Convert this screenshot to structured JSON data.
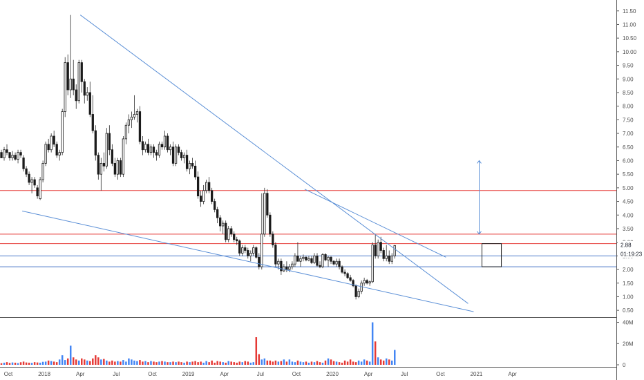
{
  "chart_data": {
    "type": "candlestick",
    "price_axis": {
      "ticks": [
        "11.50",
        "11.00",
        "10.50",
        "10.00",
        "9.50",
        "9.00",
        "8.50",
        "8.00",
        "7.50",
        "7.00",
        "6.50",
        "6.00",
        "5.50",
        "5.00",
        "4.50",
        "4.00",
        "3.50",
        "3.00",
        "2.50",
        "2.00",
        "1.50",
        "1.00",
        "0.50"
      ],
      "range": [
        0.25,
        11.9
      ]
    },
    "volume_axis": {
      "ticks": [
        "40M",
        "20M",
        "0"
      ],
      "range": [
        0,
        41
      ]
    },
    "time_axis": {
      "ticks": [
        "Oct",
        "2018",
        "Apr",
        "Jul",
        "Oct",
        "2019",
        "Apr",
        "Jul",
        "Oct",
        "2020",
        "Apr",
        "Jul",
        "Oct",
        "2021",
        "Apr"
      ],
      "range_weeks": [
        0,
        232
      ]
    },
    "last_price_label": "2.88",
    "countdown_label": "01:19:23",
    "horizontal_levels": [
      {
        "price": 4.9,
        "color": "#e53935"
      },
      {
        "price": 3.3,
        "color": "#e53935"
      },
      {
        "price": 2.95,
        "color": "#e53935"
      },
      {
        "price": 2.5,
        "color": "#4a78c8"
      },
      {
        "price": 2.1,
        "color": "#4a78c8"
      }
    ],
    "trendlines": [
      {
        "from": [
          29,
          11.35
        ],
        "to": [
          169,
          0.75
        ]
      },
      {
        "from": [
          8,
          4.15
        ],
        "to": [
          171,
          0.45
        ]
      },
      {
        "from": [
          110,
          4.95
        ],
        "to": [
          161,
          2.45
        ]
      }
    ],
    "arrow": {
      "week": 173,
      "from": 3.3,
      "to": 6.0
    },
    "box": {
      "week_from": 174,
      "week_to": 181,
      "price_from": 2.1,
      "price_to": 2.95
    },
    "candles": [
      [
        6.3,
        6.4,
        6.1,
        6.1
      ],
      [
        6.1,
        6.5,
        6.0,
        6.4
      ],
      [
        6.4,
        6.6,
        6.2,
        6.3
      ],
      [
        6.3,
        6.3,
        6.0,
        6.1
      ],
      [
        6.1,
        6.35,
        6.0,
        6.2
      ],
      [
        6.2,
        6.3,
        6.0,
        6.05
      ],
      [
        6.05,
        6.4,
        5.9,
        6.3
      ],
      [
        6.3,
        6.4,
        6.1,
        6.2
      ],
      [
        6.1,
        6.2,
        5.6,
        5.7
      ],
      [
        5.7,
        5.8,
        5.4,
        5.5
      ],
      [
        5.5,
        5.6,
        5.1,
        5.2
      ],
      [
        5.2,
        5.4,
        4.8,
        5.3
      ],
      [
        5.3,
        5.4,
        5.0,
        5.1
      ],
      [
        5.0,
        5.1,
        4.6,
        4.7
      ],
      [
        4.6,
        5.4,
        4.55,
        5.3
      ],
      [
        5.3,
        6.0,
        5.2,
        5.9
      ],
      [
        5.9,
        6.7,
        5.8,
        6.6
      ],
      [
        6.6,
        6.8,
        6.3,
        6.4
      ],
      [
        6.4,
        7.0,
        6.3,
        6.9
      ],
      [
        6.9,
        7.1,
        6.5,
        6.6
      ],
      [
        6.6,
        6.7,
        6.1,
        6.2
      ],
      [
        6.2,
        6.4,
        6.0,
        6.3
      ],
      [
        6.3,
        7.9,
        6.2,
        7.8
      ],
      [
        7.8,
        9.8,
        7.6,
        9.6
      ],
      [
        9.6,
        9.9,
        8.4,
        8.6
      ],
      [
        8.6,
        11.35,
        8.3,
        9.0
      ],
      [
        9.0,
        9.7,
        8.4,
        8.6
      ],
      [
        8.6,
        8.8,
        7.9,
        8.2
      ],
      [
        8.2,
        9.7,
        8.1,
        9.6
      ],
      [
        9.6,
        9.7,
        8.5,
        8.9
      ],
      [
        8.9,
        9.0,
        8.1,
        8.4
      ],
      [
        8.4,
        8.7,
        8.2,
        8.5
      ],
      [
        8.5,
        8.9,
        7.6,
        7.7
      ],
      [
        7.7,
        8.4,
        7.0,
        7.1
      ],
      [
        7.1,
        7.3,
        6.0,
        6.2
      ],
      [
        6.2,
        6.3,
        5.3,
        5.5
      ],
      [
        5.5,
        6.1,
        4.9,
        5.9
      ],
      [
        5.9,
        6.3,
        5.6,
        5.8
      ],
      [
        5.8,
        7.2,
        5.7,
        7.0
      ],
      [
        7.0,
        7.3,
        6.2,
        6.4
      ],
      [
        6.4,
        6.6,
        5.8,
        5.9
      ],
      [
        5.9,
        6.1,
        5.4,
        5.5
      ],
      [
        5.5,
        6.1,
        5.3,
        6.0
      ],
      [
        6.0,
        6.1,
        5.4,
        5.5
      ],
      [
        5.5,
        6.9,
        5.4,
        6.8
      ],
      [
        6.8,
        7.4,
        6.6,
        7.3
      ],
      [
        7.3,
        7.7,
        7.0,
        7.5
      ],
      [
        7.5,
        7.8,
        7.2,
        7.6
      ],
      [
        7.6,
        8.4,
        7.5,
        7.7
      ],
      [
        7.7,
        7.9,
        7.4,
        7.8
      ],
      [
        7.8,
        8.0,
        6.6,
        6.7
      ],
      [
        6.7,
        6.9,
        6.2,
        6.4
      ],
      [
        6.4,
        6.7,
        6.3,
        6.6
      ],
      [
        6.6,
        6.8,
        6.2,
        6.3
      ],
      [
        6.3,
        6.6,
        6.2,
        6.5
      ],
      [
        6.5,
        6.6,
        6.1,
        6.3
      ],
      [
        6.3,
        6.4,
        6.0,
        6.2
      ],
      [
        6.2,
        6.7,
        6.1,
        6.6
      ],
      [
        6.6,
        6.7,
        6.4,
        6.5
      ],
      [
        6.5,
        7.1,
        6.4,
        6.9
      ],
      [
        6.9,
        7.0,
        6.3,
        6.4
      ],
      [
        6.4,
        6.6,
        6.2,
        6.5
      ],
      [
        6.5,
        6.7,
        5.8,
        5.9
      ],
      [
        5.9,
        6.6,
        5.8,
        6.5
      ],
      [
        6.5,
        6.6,
        6.2,
        6.3
      ],
      [
        6.3,
        6.4,
        6.0,
        6.1
      ],
      [
        6.1,
        6.3,
        5.9,
        6.2
      ],
      [
        6.2,
        6.4,
        5.6,
        5.7
      ],
      [
        5.7,
        6.0,
        5.5,
        5.9
      ],
      [
        5.9,
        6.1,
        5.7,
        5.8
      ],
      [
        5.8,
        6.0,
        5.3,
        5.4
      ],
      [
        5.4,
        5.6,
        4.6,
        4.7
      ],
      [
        4.7,
        4.9,
        4.3,
        4.5
      ],
      [
        4.5,
        5.1,
        4.4,
        4.9
      ],
      [
        4.9,
        5.3,
        4.8,
        5.2
      ],
      [
        5.2,
        5.4,
        4.8,
        4.9
      ],
      [
        4.9,
        5.0,
        4.4,
        4.5
      ],
      [
        4.5,
        4.6,
        4.1,
        4.2
      ],
      [
        4.2,
        4.3,
        3.7,
        3.9
      ],
      [
        3.9,
        4.0,
        3.4,
        3.6
      ],
      [
        3.6,
        3.8,
        3.3,
        3.7
      ],
      [
        3.7,
        3.8,
        3.0,
        3.1
      ],
      [
        3.1,
        3.6,
        3.0,
        3.5
      ],
      [
        3.5,
        3.6,
        3.2,
        3.3
      ],
      [
        3.3,
        3.4,
        3.0,
        3.1
      ],
      [
        3.1,
        3.2,
        2.9,
        3.05
      ],
      [
        3.05,
        3.1,
        2.5,
        2.6
      ],
      [
        2.6,
        2.9,
        2.5,
        2.8
      ],
      [
        2.8,
        2.9,
        2.6,
        2.7
      ],
      [
        2.7,
        2.8,
        2.4,
        2.5
      ],
      [
        2.5,
        2.7,
        2.3,
        2.6
      ],
      [
        2.6,
        2.9,
        2.5,
        2.8
      ],
      [
        2.8,
        2.85,
        2.4,
        2.45
      ],
      [
        2.45,
        2.6,
        2.0,
        2.1
      ],
      [
        2.1,
        4.8,
        2.0,
        3.3
      ],
      [
        3.3,
        5.0,
        3.2,
        4.8
      ],
      [
        4.8,
        4.95,
        3.9,
        4.0
      ],
      [
        4.0,
        4.1,
        3.2,
        3.3
      ],
      [
        3.3,
        3.4,
        2.8,
        2.9
      ],
      [
        2.9,
        3.0,
        2.1,
        2.2
      ],
      [
        2.2,
        2.4,
        2.0,
        2.3
      ],
      [
        2.3,
        2.4,
        1.8,
        1.95
      ],
      [
        1.95,
        2.2,
        1.9,
        2.1
      ],
      [
        2.1,
        2.3,
        1.9,
        2.0
      ],
      [
        2.0,
        2.2,
        1.9,
        2.1
      ],
      [
        2.1,
        2.3,
        2.0,
        2.2
      ],
      [
        2.2,
        2.6,
        2.1,
        2.5
      ],
      [
        2.5,
        3.0,
        2.3,
        2.3
      ],
      [
        2.3,
        2.5,
        2.1,
        2.4
      ],
      [
        2.4,
        2.55,
        2.3,
        2.45
      ],
      [
        2.45,
        2.5,
        2.3,
        2.35
      ],
      [
        2.35,
        2.5,
        2.3,
        2.4
      ],
      [
        2.4,
        2.5,
        2.2,
        2.25
      ],
      [
        2.25,
        2.6,
        2.2,
        2.5
      ],
      [
        2.5,
        2.6,
        2.1,
        2.15
      ],
      [
        2.15,
        2.3,
        2.05,
        2.1
      ],
      [
        2.1,
        2.6,
        2.05,
        2.55
      ],
      [
        2.55,
        2.6,
        2.3,
        2.35
      ],
      [
        2.35,
        2.5,
        2.1,
        2.45
      ],
      [
        2.45,
        2.5,
        2.2,
        2.3
      ],
      [
        2.3,
        2.35,
        2.15,
        2.2
      ],
      [
        2.2,
        2.4,
        2.1,
        2.3
      ],
      [
        2.3,
        2.4,
        2.0,
        2.1
      ],
      [
        2.1,
        2.15,
        1.85,
        1.9
      ],
      [
        1.9,
        2.0,
        1.75,
        1.85
      ],
      [
        1.85,
        1.9,
        1.65,
        1.7
      ],
      [
        1.7,
        1.8,
        1.55,
        1.6
      ],
      [
        1.6,
        1.65,
        1.35,
        1.4
      ],
      [
        1.4,
        1.45,
        0.9,
        1.0
      ],
      [
        1.0,
        1.3,
        0.95,
        1.2
      ],
      [
        1.2,
        1.6,
        1.1,
        1.5
      ],
      [
        1.5,
        1.7,
        1.4,
        1.6
      ],
      [
        1.6,
        1.65,
        1.45,
        1.5
      ],
      [
        1.5,
        1.6,
        1.4,
        1.55
      ],
      [
        1.55,
        3.0,
        1.5,
        2.9
      ],
      [
        2.9,
        3.3,
        2.4,
        2.5
      ],
      [
        2.5,
        3.1,
        2.4,
        3.0
      ],
      [
        3.0,
        3.2,
        2.6,
        2.7
      ],
      [
        2.7,
        2.8,
        2.3,
        2.4
      ],
      [
        2.4,
        2.9,
        2.3,
        2.5
      ],
      [
        2.5,
        2.7,
        2.2,
        2.3
      ],
      [
        2.3,
        2.6,
        2.2,
        2.5
      ],
      [
        2.5,
        2.9,
        2.4,
        2.88
      ]
    ],
    "volumes": [
      1.5,
      2.0,
      2.5,
      1.8,
      2.2,
      2.0,
      1.6,
      2.4,
      3.0,
      2.2,
      2.0,
      1.8,
      2.5,
      2.2,
      2.0,
      2.8,
      3.0,
      4.0,
      3.5,
      3.0,
      2.5,
      5.0,
      9.0,
      4.5,
      6.0,
      18.0,
      7.0,
      5.0,
      4.0,
      6.0,
      5.0,
      4.0,
      3.5,
      6.0,
      9.0,
      7.0,
      5.0,
      5.5,
      4.0,
      3.0,
      4.0,
      3.0,
      3.5,
      3.0,
      4.5,
      3.0,
      6.0,
      5.0,
      4.0,
      3.5,
      4.5,
      3.0,
      3.5,
      2.5,
      3.5,
      3.0,
      2.5,
      3.0,
      3.5,
      3.0,
      2.5,
      2.5,
      3.0,
      2.5,
      3.0,
      2.5,
      2.0,
      3.0,
      2.5,
      3.0,
      3.5,
      2.5,
      3.0,
      2.0,
      3.5,
      2.5,
      4.0,
      2.0,
      3.5,
      3.0,
      2.5,
      2.0,
      3.5,
      3.0,
      2.5,
      2.0,
      3.0,
      2.5,
      3.5,
      3.0,
      2.0,
      2.5,
      26.0,
      10.0,
      5.0,
      6.0,
      4.0,
      4.0,
      3.0,
      4.0,
      3.0,
      3.5,
      5.0,
      3.0,
      5.0,
      3.0,
      2.5,
      4.0,
      3.0,
      2.5,
      3.0,
      2.0,
      3.0,
      2.5,
      3.5,
      2.5,
      2.0,
      4.0,
      6.0,
      5.0,
      3.5,
      3.0,
      2.5,
      2.0,
      4.0,
      3.0,
      5.0,
      3.0,
      2.5,
      4.0,
      3.0,
      5.0,
      4.0,
      3.0,
      40.0,
      22.0,
      7.0,
      5.0,
      4.0,
      6.0,
      5.0,
      4.0,
      14.0
    ]
  }
}
